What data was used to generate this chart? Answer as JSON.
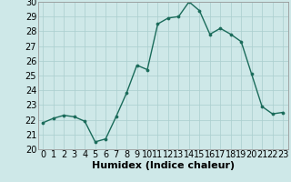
{
  "x": [
    0,
    1,
    2,
    3,
    4,
    5,
    6,
    7,
    8,
    9,
    10,
    11,
    12,
    13,
    14,
    15,
    16,
    17,
    18,
    19,
    20,
    21,
    22,
    23
  ],
  "y": [
    21.8,
    22.1,
    22.3,
    22.2,
    21.9,
    20.5,
    20.7,
    22.2,
    23.8,
    25.7,
    25.4,
    28.5,
    28.9,
    29.0,
    30.0,
    29.4,
    27.8,
    28.2,
    27.8,
    27.3,
    25.1,
    22.9,
    22.4,
    22.5
  ],
  "line_color": "#1a6b5a",
  "marker": "o",
  "marker_size": 2.2,
  "bg_color": "#cee8e8",
  "grid_color": "#aacece",
  "xlabel": "Humidex (Indice chaleur)",
  "ylim": [
    20,
    30
  ],
  "xlim": [
    -0.5,
    23.5
  ],
  "yticks": [
    20,
    21,
    22,
    23,
    24,
    25,
    26,
    27,
    28,
    29,
    30
  ],
  "xticks": [
    0,
    1,
    2,
    3,
    4,
    5,
    6,
    7,
    8,
    9,
    10,
    11,
    12,
    13,
    14,
    15,
    16,
    17,
    18,
    19,
    20,
    21,
    22,
    23
  ],
  "xlabel_fontsize": 8,
  "tick_fontsize": 7,
  "linewidth": 1.0
}
